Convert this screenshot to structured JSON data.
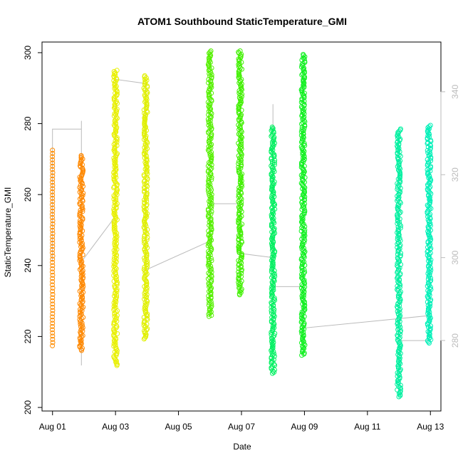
{
  "chart_data": {
    "type": "scatter",
    "title": "ATOM1 Southbound StaticTemperature_GMI",
    "xlabel": "Date",
    "ylabel": "StaticTemperature_GMI",
    "x_axis": {
      "type": "date",
      "range": [
        "2016-07-31T16:00",
        "2016-08-13T08:00"
      ],
      "ticks": [
        {
          "value": "2016-08-01",
          "label": "Aug 01"
        },
        {
          "value": "2016-08-03",
          "label": "Aug 03"
        },
        {
          "value": "2016-08-05",
          "label": "Aug 05"
        },
        {
          "value": "2016-08-07",
          "label": "Aug 07"
        },
        {
          "value": "2016-08-09",
          "label": "Aug 09"
        },
        {
          "value": "2016-08-11",
          "label": "Aug 11"
        },
        {
          "value": "2016-08-13",
          "label": "Aug 13"
        }
      ]
    },
    "y_axis": {
      "range": [
        199,
        303
      ],
      "ticks": [
        200,
        220,
        240,
        260,
        280,
        300
      ]
    },
    "y2_axis": {
      "range": [
        263,
        352
      ],
      "ticks": [
        280,
        300,
        320,
        340
      ],
      "color": "#bbbbbb"
    },
    "grid": false,
    "legend": "none",
    "marker": "open-circle",
    "series": [
      {
        "date": "2016-08-01T00:00",
        "min": 217,
        "max": 272.5,
        "color": "#ff8c00",
        "density": "sparse"
      },
      {
        "date": "2016-08-01T22:00",
        "min": 216,
        "max": 271,
        "color": "#ff8800",
        "density": "dense"
      },
      {
        "date": "2016-08-03T00:00",
        "min": 211.5,
        "max": 295,
        "color": "#e8f000",
        "density": "dense"
      },
      {
        "date": "2016-08-03T23:00",
        "min": 219,
        "max": 293.5,
        "color": "#e0f000",
        "density": "dense"
      },
      {
        "date": "2016-08-06T00:00",
        "min": 225.5,
        "max": 300.5,
        "color": "#55f000",
        "density": "dense"
      },
      {
        "date": "2016-08-06T23:00",
        "min": 231.5,
        "max": 300.5,
        "color": "#40f000",
        "density": "dense"
      },
      {
        "date": "2016-08-08T00:00",
        "min": 209.5,
        "max": 279,
        "color": "#00f060",
        "density": "dense"
      },
      {
        "date": "2016-08-08T23:00",
        "min": 214.5,
        "max": 299.5,
        "color": "#10f020",
        "density": "dense"
      },
      {
        "date": "2016-08-12T00:00",
        "min": 203,
        "max": 278.5,
        "color": "#00f0a0",
        "density": "dense"
      },
      {
        "date": "2016-08-12T23:00",
        "min": 218,
        "max": 279.5,
        "color": "#00f0b8",
        "density": "dense"
      }
    ],
    "secondary_line": {
      "color": "#bbbbbb",
      "points": [
        {
          "date": "2016-08-01T00:00",
          "y2": 299
        },
        {
          "date": "2016-08-01T00:00",
          "y2": 331
        },
        {
          "date": "2016-08-01T22:00",
          "y2": 331
        },
        {
          "date": "2016-08-01T22:00",
          "y2": 274
        },
        {
          "date": "2016-08-01T22:00",
          "y2": 333
        },
        {
          "date": "2016-08-01T22:00",
          "y2": 299
        },
        {
          "date": "2016-08-03T00:00",
          "y2": 310
        },
        {
          "date": "2016-08-03T00:00",
          "y2": 343
        },
        {
          "date": "2016-08-03T23:00",
          "y2": 342
        },
        {
          "date": "2016-08-03T23:00",
          "y2": 297
        },
        {
          "date": "2016-08-06T00:00",
          "y2": 304
        },
        {
          "date": "2016-08-06T00:00",
          "y2": 313
        },
        {
          "date": "2016-08-06T23:00",
          "y2": 313
        },
        {
          "date": "2016-08-06T23:00",
          "y2": 301
        },
        {
          "date": "2016-08-08T00:00",
          "y2": 300
        },
        {
          "date": "2016-08-08T00:00",
          "y2": 337
        },
        {
          "date": "2016-08-08T00:00",
          "y2": 293
        },
        {
          "date": "2016-08-08T23:00",
          "y2": 293
        },
        {
          "date": "2016-08-08T23:00",
          "y2": 283
        },
        {
          "date": "2016-08-12T23:00",
          "y2": 286
        },
        {
          "date": "2016-08-12T23:00",
          "y2": 280
        },
        {
          "date": "2016-08-12T00:00",
          "y2": 280
        }
      ]
    }
  }
}
